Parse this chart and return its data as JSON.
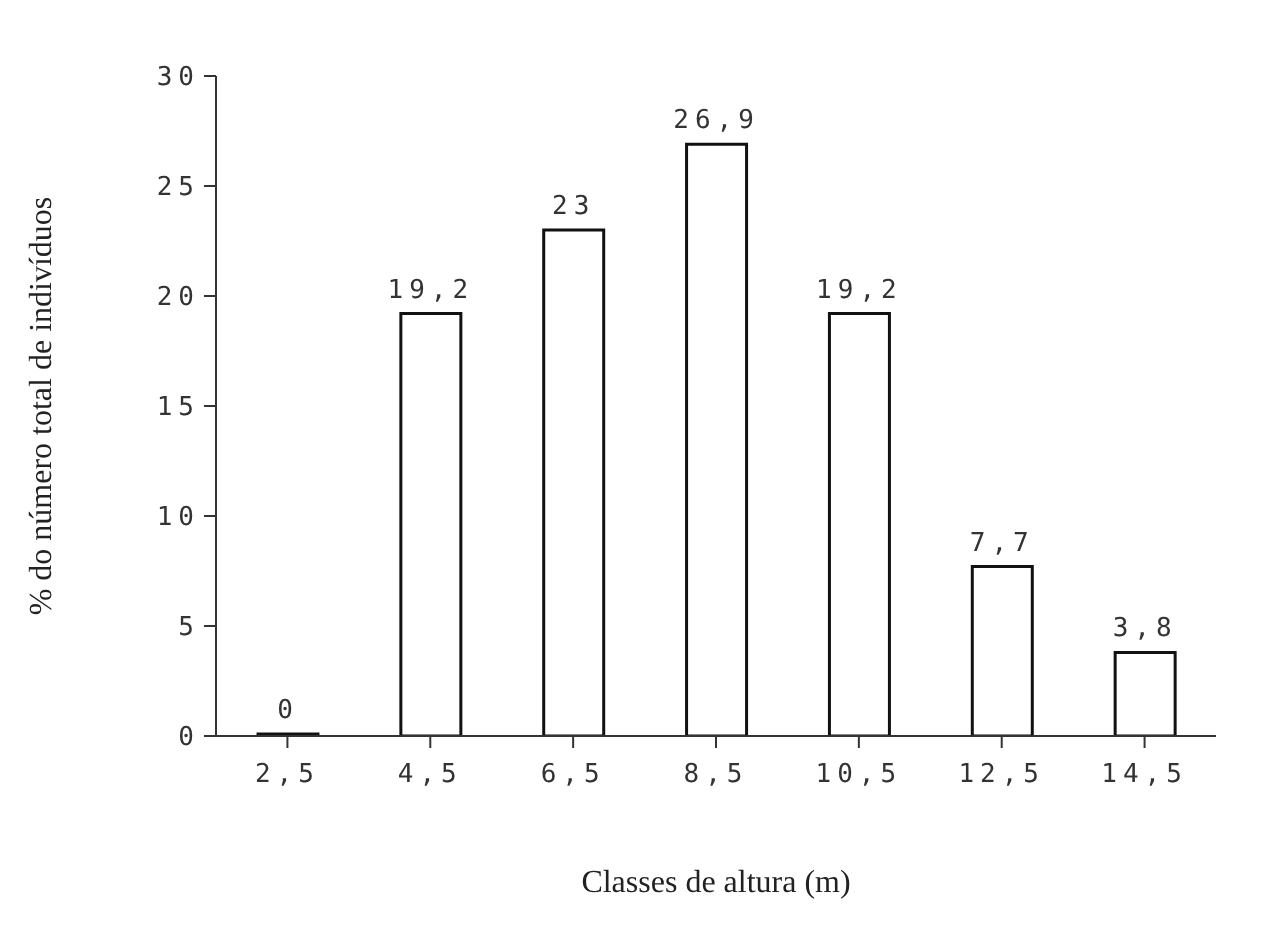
{
  "chart_data": {
    "type": "bar",
    "xlabel": "Classes de altura (m)",
    "ylabel": "% do número total de indivíduos",
    "categories": [
      "2,5",
      "4,5",
      "6,5",
      "8,5",
      "10,5",
      "12,5",
      "14,5"
    ],
    "values": [
      0,
      19.2,
      23,
      26.9,
      19.2,
      7.7,
      3.8
    ],
    "value_labels": [
      "0",
      "19,2",
      "23",
      "26,9",
      "19,2",
      "7,7",
      "3,8"
    ],
    "color": "#ffffff",
    "ylim": [
      0,
      30
    ],
    "yticks": [
      0,
      5,
      10,
      15,
      20,
      25,
      30
    ],
    "grid": false,
    "legend": false
  }
}
